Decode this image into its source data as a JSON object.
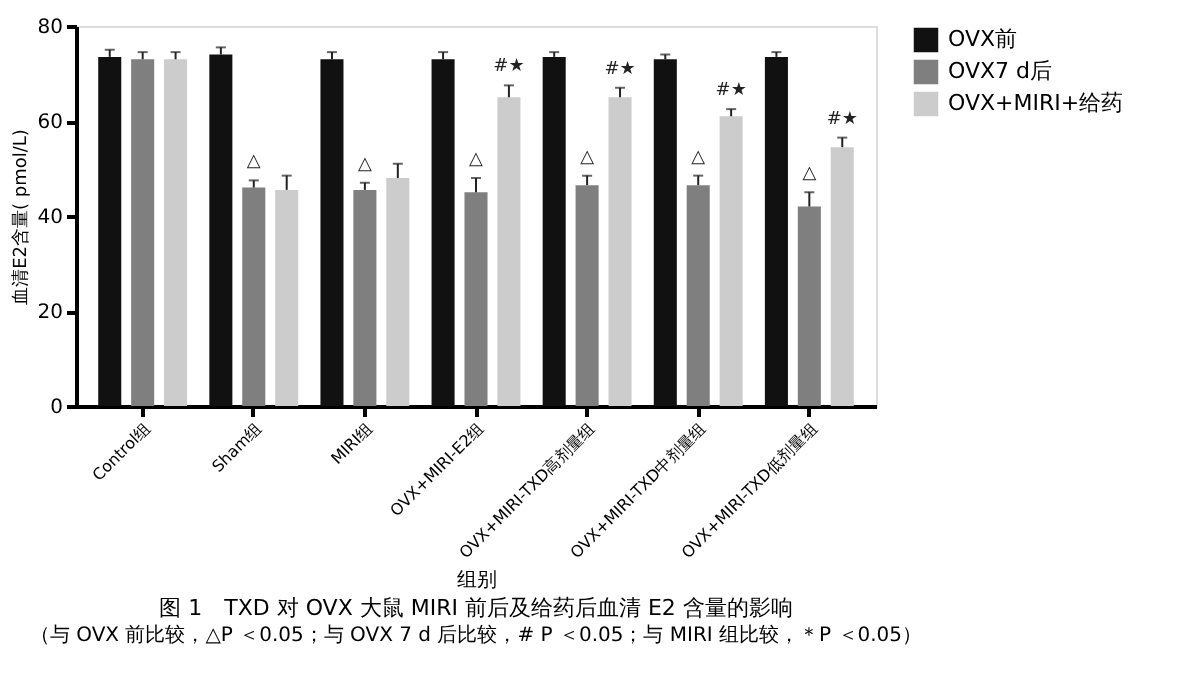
{
  "chart_data": {
    "type": "bar",
    "title": "图 1　TXD 对 OVX 大鼠 MIRI 前后及给药后血清 E2 含量的影响",
    "xlabel": "组别",
    "ylabel": "血清E2含量( pmol/L)",
    "categories": [
      "Control组",
      "Sham组",
      "MIRI组",
      "OVX+MIRI-E2组",
      "OVX+MIRI-TXD高剂量组",
      "OVX+MIRI-TXD中剂量组",
      "OVX+MIRI-TXD低剂量组"
    ],
    "series": [
      {
        "name": "OVX前",
        "color": "#111111",
        "values": [
          73.5,
          74,
          73,
          73,
          73.5,
          73,
          73.5
        ],
        "errors": [
          1.5,
          1.5,
          1.5,
          1.5,
          1,
          1,
          1
        ]
      },
      {
        "name": "OVX7 d后",
        "color": "#7f7f7f",
        "values": [
          73,
          46,
          45.5,
          45,
          46.5,
          46.5,
          42
        ],
        "errors": [
          1.5,
          1.5,
          1.5,
          3,
          2,
          2,
          3
        ],
        "value_labels": [
          null,
          "△",
          "△",
          "△",
          "△",
          "△",
          "△"
        ]
      },
      {
        "name": "OVX+MIRI+给药",
        "color": "#cccccc",
        "values": [
          73,
          45.5,
          48,
          65,
          65,
          61,
          54.5
        ],
        "errors": [
          1.5,
          3,
          3,
          2.5,
          2,
          1.5,
          2
        ],
        "value_labels": [
          null,
          null,
          null,
          "#★",
          "#★",
          "#★",
          "#★"
        ]
      }
    ],
    "ylim": [
      0,
      80
    ],
    "yticks": [
      0,
      20,
      40,
      60,
      80
    ],
    "grid": false,
    "legend": "top right",
    "annotations": [
      "（与 OVX 前比较，△P ＜0.05；与 OVX 7 d 后比较，# P ＜0.05；与 MIRI 组比较，＊P ＜0.05）"
    ]
  }
}
